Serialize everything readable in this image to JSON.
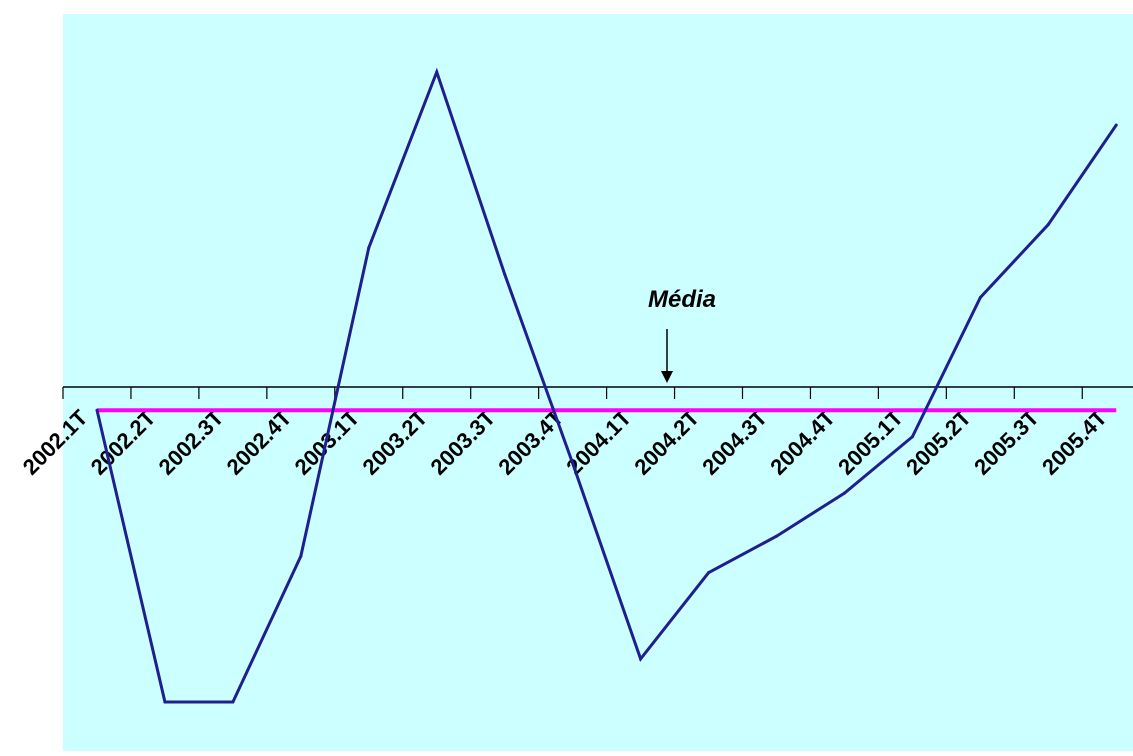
{
  "chart_data": {
    "type": "line",
    "categories": [
      "2002.1T",
      "2002.2T",
      "2002.3T",
      "2002.4T",
      "2003.1T",
      "2003.2T",
      "2003.3T",
      "2003.4T",
      "2004.1T",
      "2004.2T",
      "2004.3T",
      "2004.4T",
      "2005.1T",
      "2005.2T",
      "2005.3T",
      "2005.4T"
    ],
    "series": [
      {
        "values": [
          -0.07,
          -0.95,
          -0.95,
          -0.51,
          0.42,
          0.95,
          0.34,
          -0.23,
          -0.82,
          -0.56,
          -0.45,
          -0.32,
          -0.15,
          0.27,
          0.49,
          0.79
        ]
      },
      {
        "values": [
          -0.07,
          -0.07,
          -0.07,
          -0.07,
          -0.07,
          -0.07,
          -0.07,
          -0.07,
          -0.07,
          -0.07,
          -0.07,
          -0.07,
          -0.07,
          -0.07,
          -0.07,
          -0.07
        ]
      }
    ],
    "annotation": "Média",
    "ylim": [
      -1.03,
      1.08
    ],
    "grid": false,
    "colors": {
      "background": "#ccffff",
      "series_line": "#1f1f8f",
      "mean_line": "#ff00ff",
      "axis": "#000000"
    }
  }
}
